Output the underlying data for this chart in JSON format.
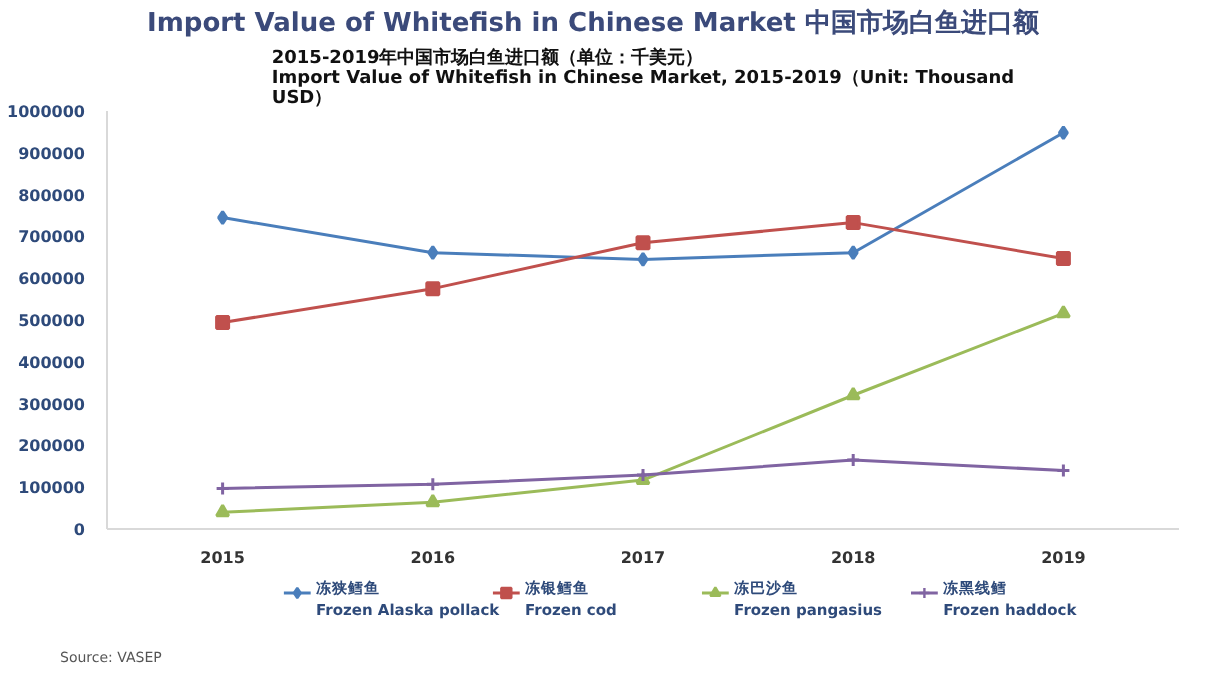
{
  "chart_data": {
    "type": "line",
    "title": "Import Value of Whitefish in Chinese Market 中国市场白鱼进口额",
    "subtitle": "2015-2019年中国市场白鱼进口额（单位：千美元）\nImport Value of Whitefish in Chinese Market, 2015-2019（Unit: Thousand\nUSD）",
    "categories": [
      "2015",
      "2016",
      "2017",
      "2018",
      "2019"
    ],
    "series": [
      {
        "name": "冻狭鳕鱼\nFrozen Alaska pollack",
        "color": "#4a7ebb",
        "marker": "diamond",
        "values": [
          745000,
          661000,
          645000,
          661000,
          948000
        ]
      },
      {
        "name": "冻银鳕鱼\nFrozen cod",
        "color": "#c0504d",
        "marker": "square",
        "values": [
          494000,
          575000,
          685000,
          733000,
          647000
        ]
      },
      {
        "name": "冻巴沙鱼\nFrozen pangasius",
        "color": "#9bbb59",
        "marker": "triangle",
        "values": [
          40000,
          64000,
          117000,
          320000,
          516000
        ]
      },
      {
        "name": "冻黑线鳕\nFrozen haddock",
        "color": "#8064a2",
        "marker": "cross",
        "values": [
          97000,
          107000,
          129000,
          165000,
          140000
        ]
      }
    ],
    "ylim": [
      0,
      1000000
    ],
    "yticks": [
      0,
      100000,
      200000,
      300000,
      400000,
      500000,
      600000,
      700000,
      800000,
      900000,
      1000000
    ],
    "grid": false,
    "legend": "bottom",
    "line_style": "solid",
    "annotations": [
      "Source: VASEP"
    ]
  }
}
